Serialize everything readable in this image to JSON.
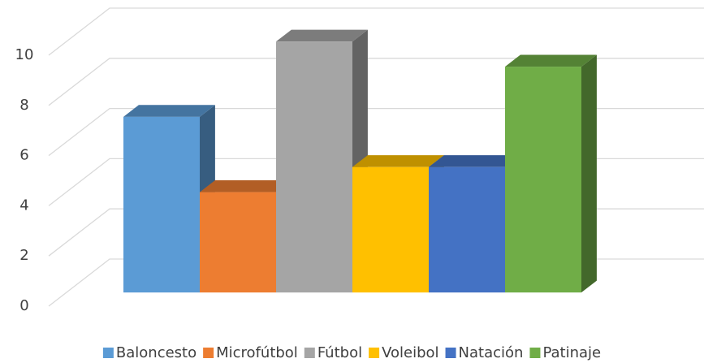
{
  "chart_data": {
    "type": "bar",
    "categories": [
      "Baloncesto",
      "Microfútbol",
      "Fútbol",
      "Voleibol",
      "Natación",
      "Patinaje"
    ],
    "values": [
      7,
      4,
      10,
      5,
      5,
      9
    ],
    "colors": [
      "#5b9bd5",
      "#ed7d31",
      "#a5a5a5",
      "#ffc000",
      "#4472c4",
      "#70ad47"
    ],
    "ylim": [
      0,
      10
    ],
    "yticks": [
      0,
      2,
      4,
      6,
      8,
      10
    ],
    "grid": true,
    "legend": "bottom"
  }
}
